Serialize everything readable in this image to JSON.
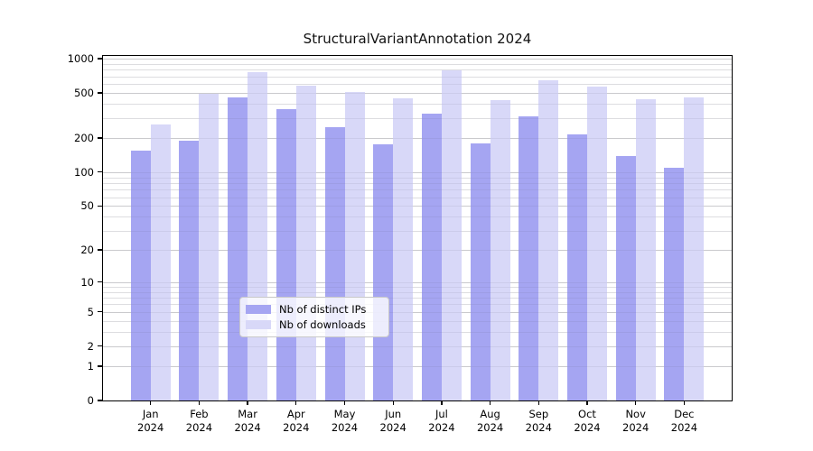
{
  "title": "StructuralVariantAnnotation 2024",
  "legend": {
    "items": [
      {
        "label": "Nb of distinct IPs",
        "color": "#a5a5f2"
      },
      {
        "label": "Nb of downloads",
        "color": "#d8d8f8"
      }
    ]
  },
  "axes": {
    "y_tick_labels": [
      "1000",
      "500",
      "200",
      "100",
      "50",
      "20",
      "10",
      "5",
      "2",
      "1",
      "0"
    ],
    "x_year_label": "2024"
  },
  "chart_data": {
    "type": "bar",
    "title": "StructuralVariantAnnotation 2024",
    "scale": "log1p",
    "categories": [
      "Jan",
      "Feb",
      "Mar",
      "Apr",
      "May",
      "Jun",
      "Jul",
      "Aug",
      "Sep",
      "Oct",
      "Nov",
      "Dec"
    ],
    "year": "2024",
    "series": [
      {
        "name": "Nb of distinct IPs",
        "color": "#a5a5f2",
        "values": [
          155,
          190,
          455,
          358,
          250,
          175,
          327,
          180,
          310,
          215,
          140,
          110
        ]
      },
      {
        "name": "Nb of downloads",
        "color": "#d8d8f8",
        "values": [
          265,
          490,
          760,
          580,
          510,
          445,
          785,
          435,
          650,
          570,
          440,
          455
        ]
      }
    ],
    "yticks": [
      1000,
      500,
      200,
      100,
      50,
      20,
      10,
      5,
      2,
      1,
      0
    ],
    "minor_gridlines": [
      3,
      4,
      6,
      7,
      8,
      9,
      30,
      40,
      60,
      70,
      80,
      90,
      300,
      400,
      600,
      700,
      800,
      900
    ],
    "ylim": [
      0,
      1000
    ],
    "grid": "on",
    "legend_position": "inside-bottom-center"
  }
}
